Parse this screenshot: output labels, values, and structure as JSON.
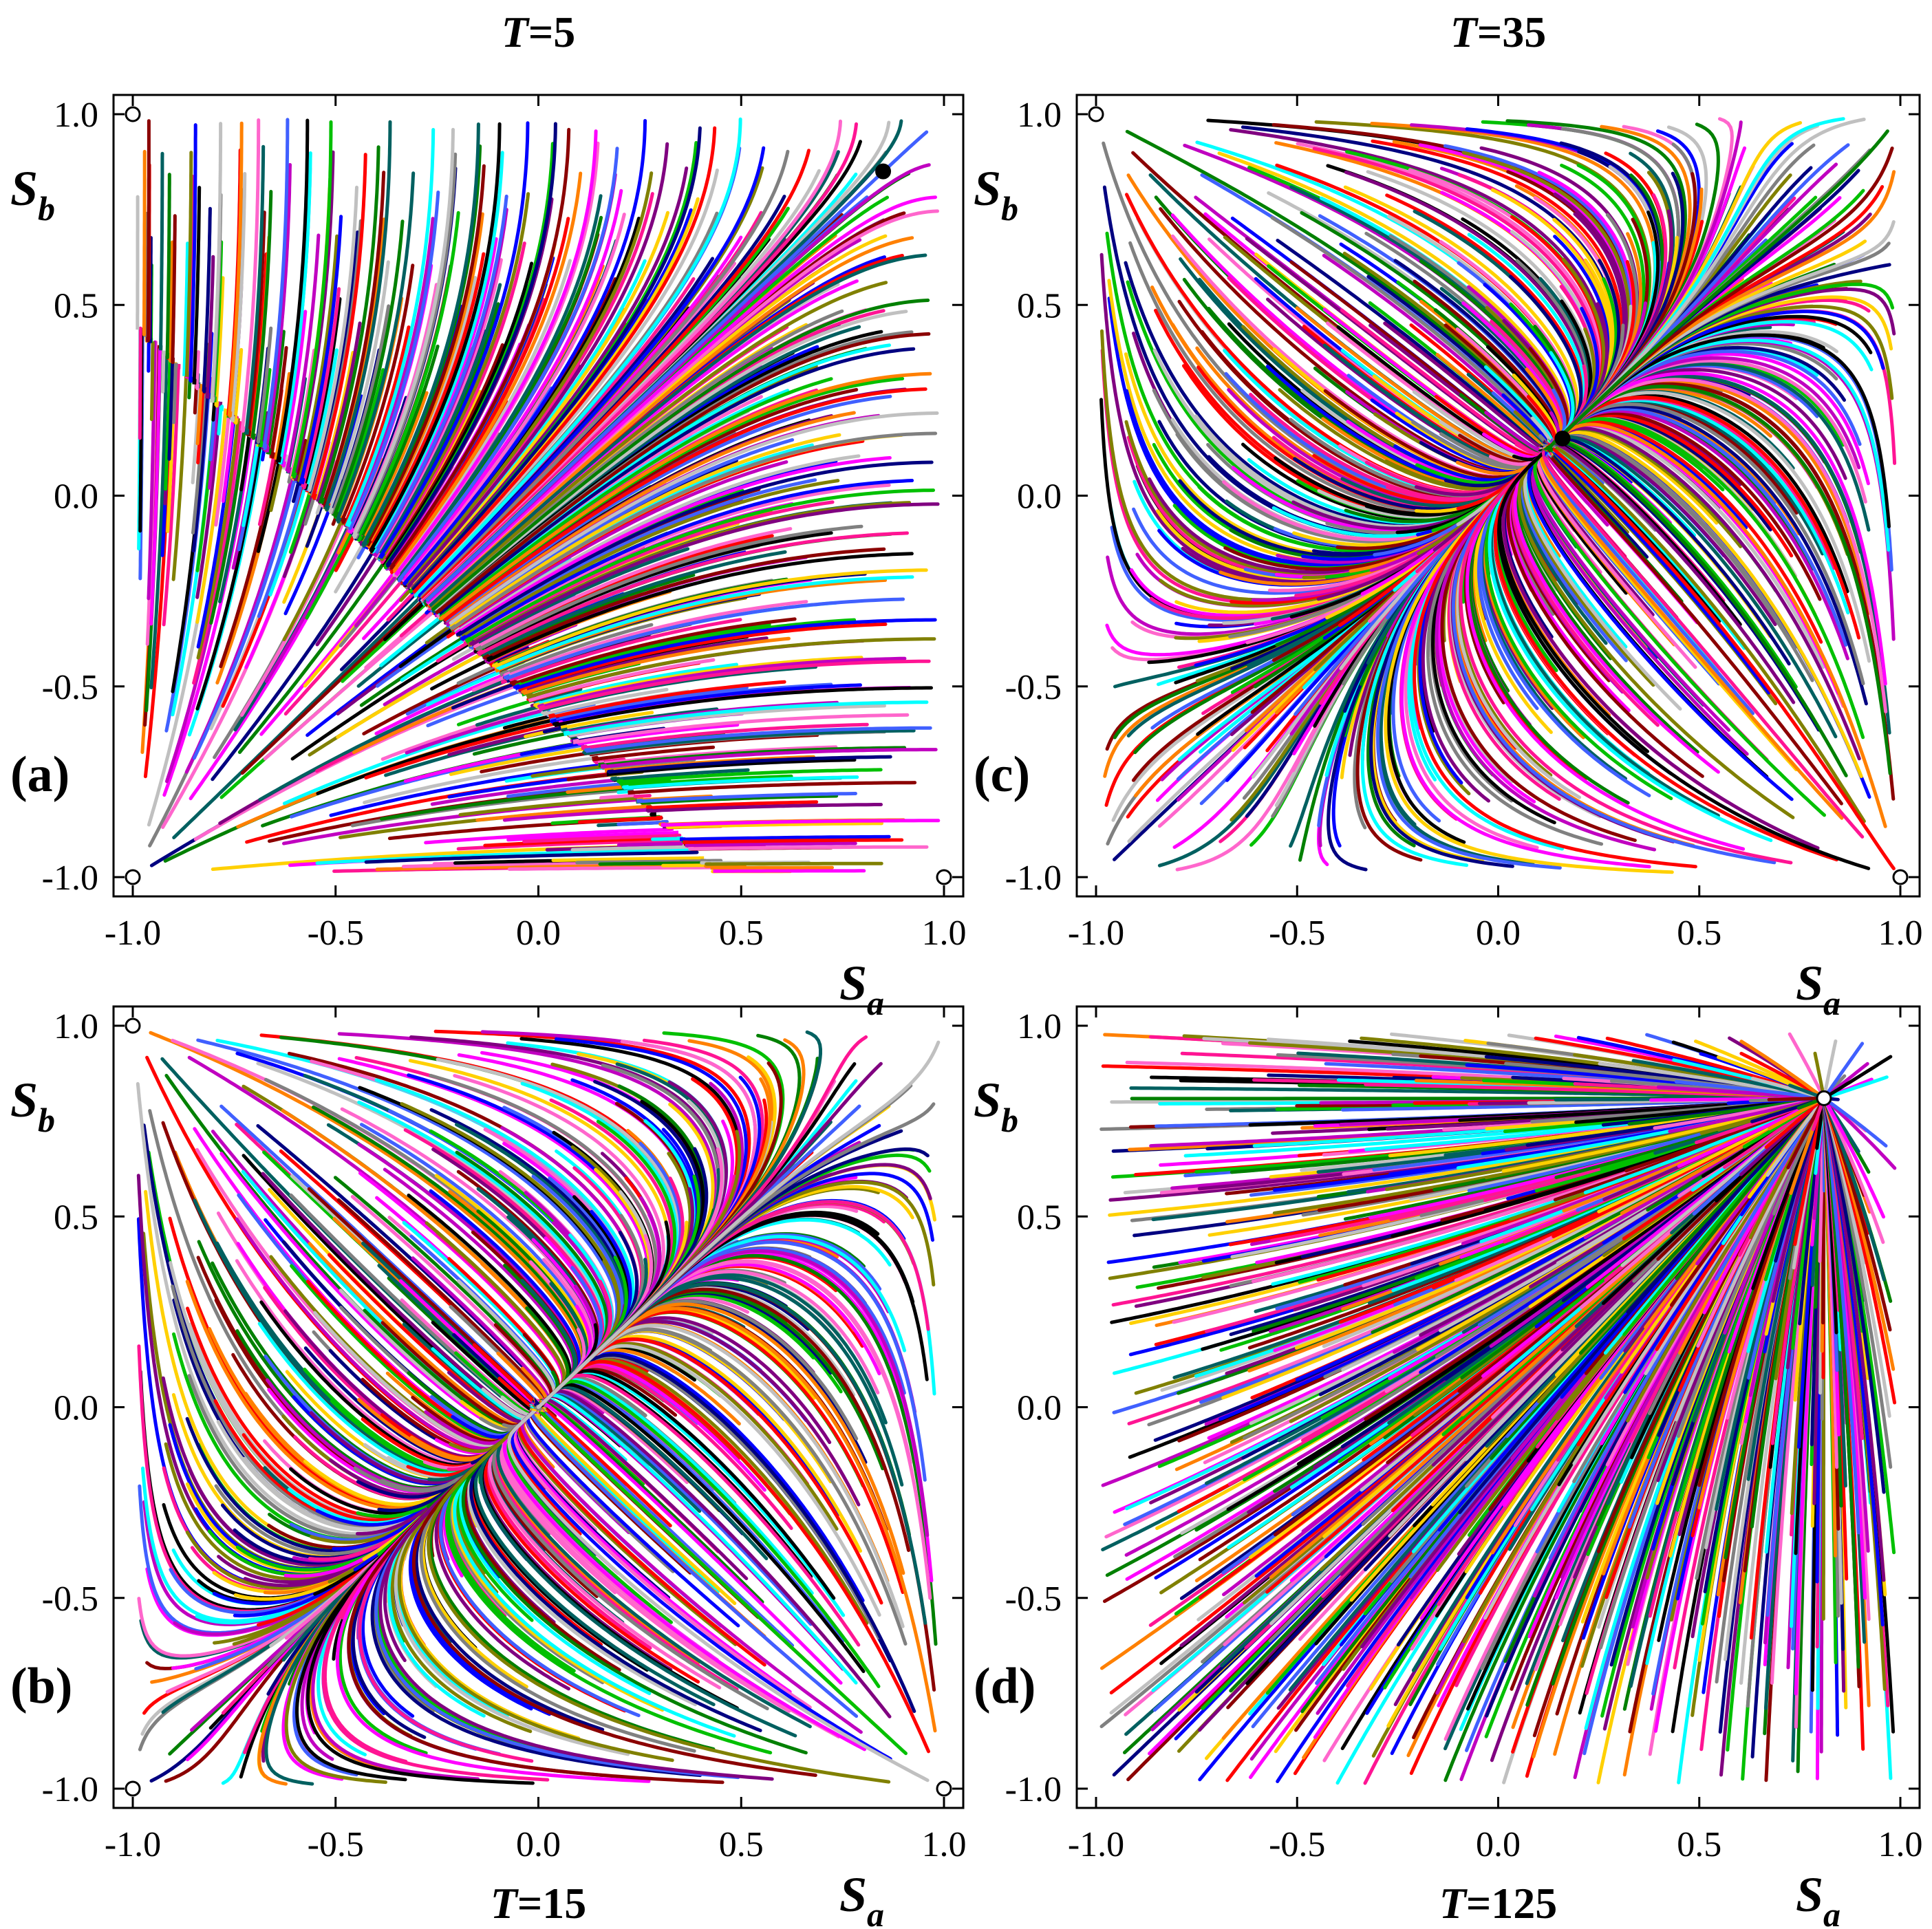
{
  "colors": [
    "#000080",
    "#ff0000",
    "#008000",
    "#ff00ff",
    "#00ffff",
    "#808000",
    "#800080",
    "#808080",
    "#ff8000",
    "#006060",
    "#c000c0",
    "#000000",
    "#0000ff",
    "#00c000",
    "#c0c0c0",
    "#8b0000",
    "#ff66cc",
    "#4060ff",
    "#ff1493",
    "#ffd000"
  ],
  "fixed_point_style": {
    "unstable": "#ffffff",
    "stable": "#000000"
  },
  "chart_data": [
    {
      "panel": "(a)",
      "type": "line",
      "title": "T=5",
      "title_var": "T",
      "title_value": "=5",
      "title_position": "top",
      "xlabel": "S",
      "xlabel_sub": "a",
      "ylabel": "S",
      "ylabel_sub": "b",
      "xlim": [
        -1.0,
        1.0
      ],
      "ylim": [
        -1.0,
        1.0
      ],
      "xticks": [
        "-1.0",
        "-0.5",
        "0.0",
        "0.5",
        "1.0"
      ],
      "yticks": [
        "-1.0",
        "-0.5",
        "0.0",
        "0.5",
        "1.0"
      ],
      "grid": false,
      "regime": "T5",
      "fixed_points": [
        {
          "x": -1.0,
          "y": 1.0,
          "kind": "unstable"
        },
        {
          "x": -1.0,
          "y": -1.0,
          "kind": "unstable"
        },
        {
          "x": 1.0,
          "y": -1.0,
          "kind": "unstable"
        },
        {
          "x": 0.85,
          "y": 0.85,
          "kind": "stable"
        }
      ]
    },
    {
      "panel": "(b)",
      "type": "line",
      "title": "T=15",
      "title_var": "T",
      "title_value": "=15",
      "title_position": "bottom",
      "xlabel": "S",
      "xlabel_sub": "a",
      "ylabel": "S",
      "ylabel_sub": "b",
      "xlim": [
        -1.0,
        1.0
      ],
      "ylim": [
        -1.0,
        1.0
      ],
      "xticks": [
        "-1.0",
        "-0.5",
        "0.0",
        "0.5",
        "1.0"
      ],
      "yticks": [
        "-1.0",
        "-0.5",
        "0.0",
        "0.5",
        "1.0"
      ],
      "grid": false,
      "regime": "T15",
      "fixed_points": [
        {
          "x": -1.0,
          "y": 1.0,
          "kind": "unstable"
        },
        {
          "x": -1.0,
          "y": -1.0,
          "kind": "unstable"
        },
        {
          "x": 1.0,
          "y": -1.0,
          "kind": "unstable"
        }
      ]
    },
    {
      "panel": "(c)",
      "type": "line",
      "title": "T=35",
      "title_var": "T",
      "title_value": "=35",
      "title_position": "top",
      "xlabel": "S",
      "xlabel_sub": "a",
      "ylabel": "S",
      "ylabel_sub": "b",
      "xlim": [
        -1.0,
        1.0
      ],
      "ylim": [
        -1.0,
        1.0
      ],
      "xticks": [
        "-1.0",
        "-0.5",
        "0.0",
        "0.5",
        "1.0"
      ],
      "yticks": [
        "-1.0",
        "-0.5",
        "0.0",
        "0.5",
        "1.0"
      ],
      "grid": false,
      "regime": "T35",
      "fixed_points": [
        {
          "x": -1.0,
          "y": 1.0,
          "kind": "unstable"
        },
        {
          "x": 1.0,
          "y": -1.0,
          "kind": "unstable"
        },
        {
          "x": 0.16,
          "y": 0.15,
          "kind": "stable"
        }
      ]
    },
    {
      "panel": "(d)",
      "type": "line",
      "title": "T=125",
      "title_var": "T",
      "title_value": "=125",
      "title_position": "bottom",
      "xlabel": "S",
      "xlabel_sub": "a",
      "ylabel": "S",
      "ylabel_sub": "b",
      "xlim": [
        -1.0,
        1.0
      ],
      "ylim": [
        -1.0,
        1.0
      ],
      "xticks": [
        "-1.0",
        "-0.5",
        "0.0",
        "0.5",
        "1.0"
      ],
      "yticks": [
        "-1.0",
        "-0.5",
        "0.0",
        "0.5",
        "1.0"
      ],
      "grid": false,
      "regime": "T125",
      "fixed_points": [
        {
          "x": 0.81,
          "y": 0.81,
          "kind": "unstable"
        }
      ]
    }
  ]
}
